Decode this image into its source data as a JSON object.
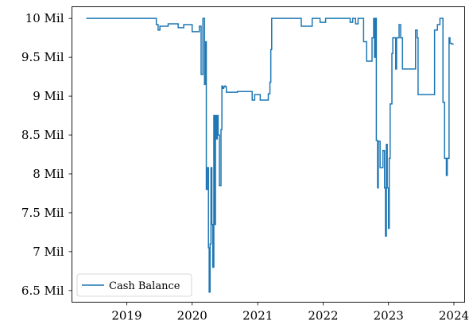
{
  "chart_data": {
    "type": "line",
    "title": "",
    "xlabel": "",
    "ylabel": "",
    "x_axis_type": "date",
    "xlim": [
      "2018-03-01",
      "2024-03-01"
    ],
    "ylim": [
      6.35,
      10.15
    ],
    "x_ticks": [
      {
        "date": "2019-01-01",
        "label": "2019"
      },
      {
        "date": "2020-01-01",
        "label": "2020"
      },
      {
        "date": "2021-01-01",
        "label": "2021"
      },
      {
        "date": "2022-01-01",
        "label": "2022"
      },
      {
        "date": "2023-01-01",
        "label": "2023"
      },
      {
        "date": "2024-01-01",
        "label": "2024"
      }
    ],
    "y_ticks": [
      {
        "value": 6.5,
        "label": "6.5 Mil"
      },
      {
        "value": 7,
        "label": "7 Mil"
      },
      {
        "value": 7.5,
        "label": "7.5 Mil"
      },
      {
        "value": 8,
        "label": "8 Mil"
      },
      {
        "value": 8.5,
        "label": "8.5 Mil"
      },
      {
        "value": 9,
        "label": "9 Mil"
      },
      {
        "value": 9.5,
        "label": "9.5 Mil"
      },
      {
        "value": 10,
        "label": "10 Mil"
      }
    ],
    "grid": false,
    "legend": {
      "position": "lower-left",
      "entries": [
        "Cash Balance"
      ]
    },
    "series": [
      {
        "name": "Cash Balance",
        "color": "#1f77b4",
        "step": "post",
        "x": [
          "2018-05-20",
          "2019-06-15",
          "2019-06-25",
          "2019-07-05",
          "2019-08-20",
          "2019-10-15",
          "2019-11-15",
          "2020-01-01",
          "2020-02-10",
          "2020-02-20",
          "2020-03-01",
          "2020-03-10",
          "2020-03-15",
          "2020-03-20",
          "2020-03-25",
          "2020-04-01",
          "2020-04-05",
          "2020-04-10",
          "2020-04-15",
          "2020-04-20",
          "2020-04-25",
          "2020-05-01",
          "2020-05-05",
          "2020-05-10",
          "2020-05-15",
          "2020-05-20",
          "2020-05-25",
          "2020-06-01",
          "2020-06-10",
          "2020-06-15",
          "2020-06-20",
          "2020-06-25",
          "2020-07-01",
          "2020-07-05",
          "2020-07-10",
          "2020-08-15",
          "2020-09-10",
          "2020-12-01",
          "2020-12-15",
          "2021-01-15",
          "2021-03-01",
          "2021-03-10",
          "2021-03-15",
          "2021-03-20",
          "2021-09-01",
          "2021-11-01",
          "2021-12-15",
          "2022-01-15",
          "2022-06-01",
          "2022-06-15",
          "2022-07-01",
          "2022-07-15",
          "2022-08-15",
          "2022-09-01",
          "2022-10-01",
          "2022-10-10",
          "2022-10-15",
          "2022-10-20",
          "2022-10-25",
          "2022-11-01",
          "2022-11-05",
          "2022-11-15",
          "2022-12-01",
          "2022-12-10",
          "2022-12-15",
          "2022-12-20",
          "2022-12-25",
          "2023-01-01",
          "2023-01-05",
          "2023-01-10",
          "2023-01-20",
          "2023-01-25",
          "2023-02-10",
          "2023-02-15",
          "2023-03-01",
          "2023-03-10",
          "2023-03-20",
          "2023-04-01",
          "2023-06-01",
          "2023-06-10",
          "2023-06-15",
          "2023-06-25",
          "2023-08-01",
          "2023-09-01",
          "2023-09-15",
          "2023-10-01",
          "2023-10-15",
          "2023-10-25",
          "2023-11-01",
          "2023-11-10",
          "2023-11-20",
          "2023-11-25",
          "2023-12-01",
          "2023-12-05",
          "2023-12-10",
          "2023-12-20",
          "2023-12-31"
        ],
        "y": [
          10.0,
          9.92,
          9.85,
          9.9,
          9.93,
          9.88,
          9.92,
          9.83,
          9.9,
          9.28,
          10.0,
          9.15,
          9.7,
          7.8,
          8.08,
          7.05,
          6.48,
          7.1,
          8.08,
          7.35,
          6.8,
          8.75,
          7.35,
          8.75,
          8.45,
          8.75,
          8.5,
          7.85,
          8.57,
          9.13,
          9.1,
          9.12,
          9.13,
          9.12,
          9.05,
          9.05,
          9.06,
          8.95,
          9.02,
          8.95,
          9.03,
          9.18,
          9.6,
          10.0,
          9.9,
          10.0,
          9.95,
          10.0,
          9.95,
          10.0,
          9.93,
          10.0,
          9.7,
          9.45,
          9.75,
          10.0,
          9.5,
          10.0,
          8.43,
          7.82,
          8.42,
          8.08,
          8.3,
          7.82,
          7.2,
          8.38,
          7.82,
          7.3,
          8.2,
          8.9,
          9.55,
          9.75,
          9.35,
          9.75,
          9.92,
          9.75,
          9.35,
          9.35,
          9.85,
          9.75,
          9.02,
          9.02,
          9.02,
          9.02,
          9.85,
          9.92,
          10.0,
          10.0,
          8.92,
          8.2,
          7.98,
          8.2,
          8.2,
          9.75,
          9.68,
          9.67,
          9.67
        ]
      }
    ]
  }
}
